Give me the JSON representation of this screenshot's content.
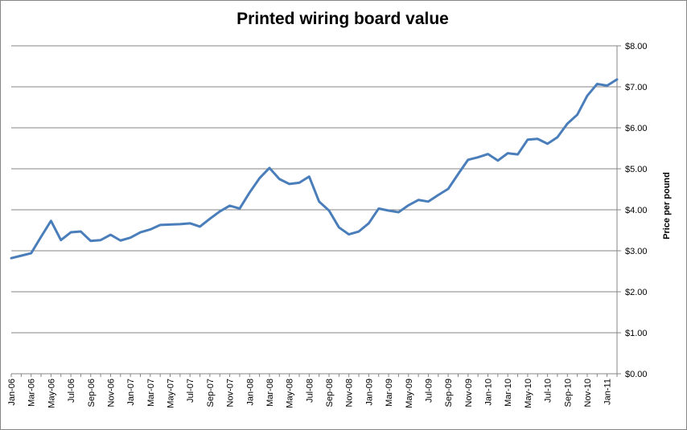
{
  "chart_data": {
    "type": "line",
    "title": "Printed wiring board value",
    "xlabel": "",
    "ylabel": "Price per pound",
    "ylim": [
      0,
      8
    ],
    "y_axis_position": "right",
    "grid": true,
    "legend": "none",
    "line_color": "#4a7ebb",
    "yticks": [
      "$0.00",
      "$1.00",
      "$2.00",
      "$3.00",
      "$4.00",
      "$5.00",
      "$6.00",
      "$7.00",
      "$8.00"
    ],
    "x": [
      "Jan-06",
      "Feb-06",
      "Mar-06",
      "Apr-06",
      "May-06",
      "Jun-06",
      "Jul-06",
      "Aug-06",
      "Sep-06",
      "Oct-06",
      "Nov-06",
      "Dec-06",
      "Jan-07",
      "Feb-07",
      "Mar-07",
      "Apr-07",
      "May-07",
      "Jun-07",
      "Jul-07",
      "Aug-07",
      "Sep-07",
      "Oct-07",
      "Nov-07",
      "Dec-07",
      "Jan-08",
      "Feb-08",
      "Mar-08",
      "Apr-08",
      "May-08",
      "Jun-08",
      "Jul-08",
      "Aug-08",
      "Sep-08",
      "Oct-08",
      "Nov-08",
      "Dec-08",
      "Jan-09",
      "Feb-09",
      "Mar-09",
      "Apr-09",
      "May-09",
      "Jun-09",
      "Jul-09",
      "Aug-09",
      "Sep-09",
      "Oct-09",
      "Nov-09",
      "Dec-09",
      "Jan-10",
      "Feb-10",
      "Mar-10",
      "Apr-10",
      "May-10",
      "Jun-10",
      "Jul-10",
      "Aug-10",
      "Sep-10",
      "Oct-10",
      "Nov-10",
      "Dec-10",
      "Jan-11",
      "Feb-11"
    ],
    "xtick_labels": [
      "Jan-06",
      "Mar-06",
      "May-06",
      "Jul-06",
      "Sep-06",
      "Nov-06",
      "Jan-07",
      "Mar-07",
      "May-07",
      "Jul-07",
      "Sep-07",
      "Nov-07",
      "Jan-08",
      "Mar-08",
      "May-08",
      "Jul-08",
      "Sep-08",
      "Nov-08",
      "Jan-09",
      "Mar-09",
      "May-09",
      "Jul-09",
      "Sep-09",
      "Nov-09",
      "Jan-10",
      "Mar-10",
      "May-10",
      "Jul-10",
      "Sep-10",
      "Nov-10",
      "Jan-11"
    ],
    "values": [
      2.82,
      2.88,
      2.94,
      3.34,
      3.73,
      3.26,
      3.45,
      3.47,
      3.24,
      3.26,
      3.39,
      3.25,
      3.32,
      3.45,
      3.52,
      3.63,
      3.64,
      3.65,
      3.67,
      3.59,
      3.78,
      3.96,
      4.1,
      4.03,
      4.42,
      4.77,
      5.02,
      4.75,
      4.63,
      4.66,
      4.81,
      4.2,
      3.98,
      3.57,
      3.4,
      3.47,
      3.67,
      4.03,
      3.98,
      3.94,
      4.11,
      4.24,
      4.2,
      4.36,
      4.51,
      4.87,
      5.22,
      5.28,
      5.36,
      5.2,
      5.38,
      5.35,
      5.71,
      5.73,
      5.61,
      5.77,
      6.1,
      6.32,
      6.78,
      7.07,
      7.03,
      7.18
    ]
  }
}
